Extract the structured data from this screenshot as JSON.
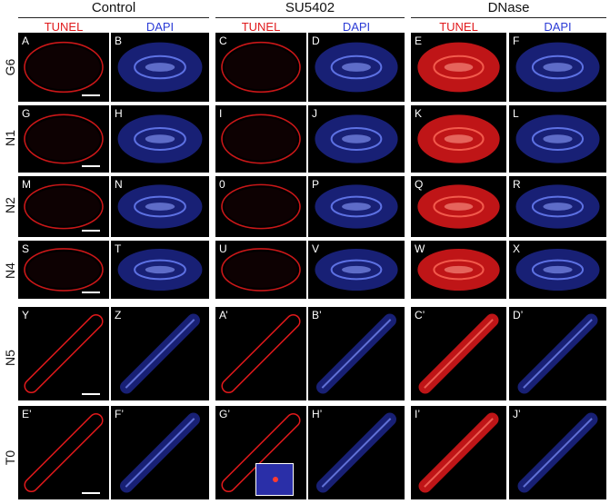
{
  "groups": [
    {
      "title": "Control",
      "stain_left": "TUNEL",
      "stain_right": "DAPI"
    },
    {
      "title": "SU5402",
      "stain_left": "TUNEL",
      "stain_right": "DAPI"
    },
    {
      "title": "DNase",
      "stain_left": "TUNEL",
      "stain_right": "DAPI"
    }
  ],
  "rows": [
    {
      "label": "G6",
      "panels": [
        "A",
        "B",
        "C",
        "D",
        "E",
        "F"
      ]
    },
    {
      "label": "N1",
      "panels": [
        "G",
        "H",
        "I",
        "J",
        "K",
        "L"
      ]
    },
    {
      "label": "N2",
      "panels": [
        "M",
        "N",
        "0",
        "P",
        "Q",
        "R"
      ]
    },
    {
      "label": "N4",
      "panels": [
        "S",
        "T",
        "U",
        "V",
        "W",
        "X"
      ]
    },
    {
      "label": "N5",
      "panels": [
        "Y",
        "Z",
        "A’",
        "B’",
        "C’",
        "D’"
      ]
    },
    {
      "label": "T0",
      "panels": [
        "E’",
        "F’",
        "G’",
        "H’",
        "I’",
        "J’"
      ]
    }
  ],
  "colors": {
    "tunel": "#e0191b",
    "dapi": "#2b3bd6",
    "bg": "#000000"
  }
}
